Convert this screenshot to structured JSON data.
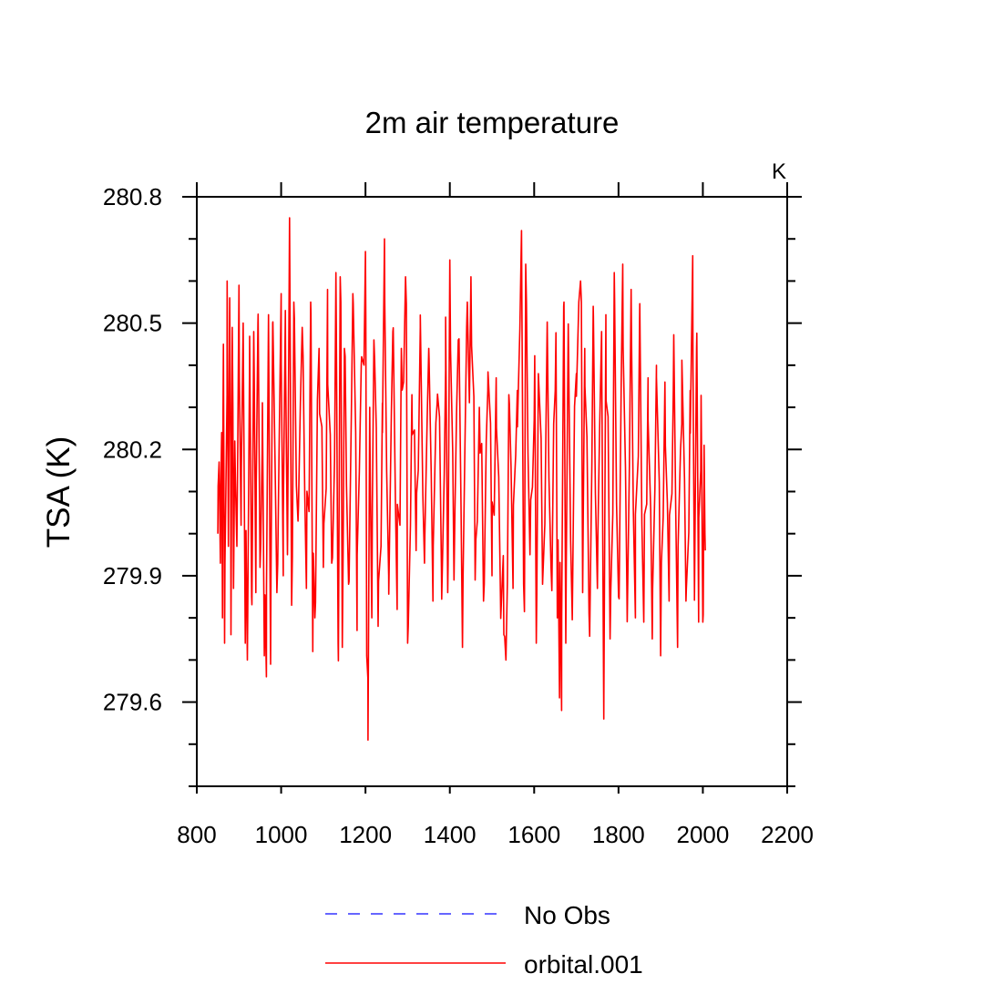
{
  "chart_data": {
    "type": "line",
    "title": "2m air temperature",
    "units_label": "K",
    "xlabel": "",
    "ylabel": "TSA  (K)",
    "xlim": [
      800,
      2200
    ],
    "ylim": [
      279.4,
      280.8
    ],
    "xticks": [
      800,
      1000,
      1200,
      1400,
      1600,
      1800,
      2000,
      2200
    ],
    "xtick_labels": [
      "800",
      "1000",
      "1200",
      "1400",
      "1600",
      "1800",
      "2000",
      "2200"
    ],
    "yticks": [
      279.6,
      279.9,
      280.2,
      280.5,
      280.8
    ],
    "ytick_labels": [
      "279.6",
      "279.9",
      "280.2",
      "280.5",
      "280.8"
    ],
    "grid": false,
    "legend_position": "bottom-center",
    "series": [
      {
        "name": "No Obs",
        "color": "#3333ff",
        "style": "dashed",
        "x": [],
        "values": []
      },
      {
        "name": "orbital.001",
        "color": "#ff0000",
        "style": "solid",
        "x_start": 850,
        "x_end": 2005,
        "x_step": 5,
        "anchors": [
          [
            850,
            280.0
          ],
          [
            853,
            280.17
          ],
          [
            856,
            279.93
          ],
          [
            859,
            280.24
          ],
          [
            861,
            279.8
          ],
          [
            863,
            280.45
          ],
          [
            866,
            279.74
          ],
          [
            869,
            280.1
          ],
          [
            872,
            280.6
          ],
          [
            875,
            279.97
          ],
          [
            878,
            280.56
          ],
          [
            881,
            279.76
          ],
          [
            884,
            280.49
          ],
          [
            887,
            279.87
          ],
          [
            890,
            280.22
          ],
          [
            895,
            279.97
          ],
          [
            900,
            280.59
          ],
          [
            905,
            280.02
          ],
          [
            910,
            280.5
          ],
          [
            915,
            279.74
          ],
          [
            920,
            279.7
          ],
          [
            925,
            280.4
          ],
          [
            930,
            279.85
          ],
          [
            935,
            280.48
          ],
          [
            940,
            279.86
          ],
          [
            945,
            280.5
          ],
          [
            950,
            279.92
          ],
          [
            955,
            280.19
          ],
          [
            960,
            279.71
          ],
          [
            965,
            279.66
          ],
          [
            970,
            280.52
          ],
          [
            975,
            279.69
          ],
          [
            980,
            280.5
          ],
          [
            990,
            279.86
          ],
          [
            1000,
            280.57
          ],
          [
            1005,
            279.9
          ],
          [
            1010,
            280.53
          ],
          [
            1015,
            279.95
          ],
          [
            1020,
            280.75
          ],
          [
            1025,
            279.83
          ],
          [
            1030,
            280.55
          ],
          [
            1040,
            280.03
          ],
          [
            1050,
            280.49
          ],
          [
            1060,
            279.87
          ],
          [
            1070,
            280.55
          ],
          [
            1075,
            279.72
          ],
          [
            1080,
            279.8
          ],
          [
            1090,
            280.44
          ],
          [
            1100,
            279.92
          ],
          [
            1110,
            280.58
          ],
          [
            1120,
            279.93
          ],
          [
            1130,
            280.62
          ],
          [
            1135,
            279.74
          ],
          [
            1140,
            280.61
          ],
          [
            1145,
            279.73
          ],
          [
            1150,
            280.44
          ],
          [
            1160,
            279.88
          ],
          [
            1170,
            280.57
          ],
          [
            1180,
            279.77
          ],
          [
            1190,
            280.4
          ],
          [
            1200,
            280.67
          ],
          [
            1203,
            279.71
          ],
          [
            1206,
            279.51
          ],
          [
            1210,
            280.3
          ],
          [
            1215,
            279.8
          ],
          [
            1220,
            280.46
          ],
          [
            1230,
            279.78
          ],
          [
            1240,
            280.31
          ],
          [
            1245,
            280.7
          ],
          [
            1255,
            279.9
          ],
          [
            1265,
            280.48
          ],
          [
            1275,
            279.82
          ],
          [
            1285,
            280.44
          ],
          [
            1295,
            280.61
          ],
          [
            1300,
            279.74
          ],
          [
            1310,
            280.33
          ],
          [
            1320,
            279.96
          ],
          [
            1330,
            280.49
          ],
          [
            1340,
            279.93
          ],
          [
            1350,
            280.44
          ],
          [
            1360,
            279.84
          ],
          [
            1370,
            280.31
          ],
          [
            1380,
            279.92
          ],
          [
            1390,
            280.39
          ],
          [
            1395,
            279.86
          ],
          [
            1400,
            280.65
          ],
          [
            1410,
            279.89
          ],
          [
            1420,
            280.46
          ],
          [
            1430,
            279.73
          ],
          [
            1440,
            280.49
          ],
          [
            1450,
            280.61
          ],
          [
            1460,
            279.89
          ],
          [
            1470,
            280.3
          ],
          [
            1480,
            279.84
          ],
          [
            1490,
            280.34
          ],
          [
            1500,
            279.9
          ],
          [
            1510,
            280.37
          ],
          [
            1520,
            279.85
          ],
          [
            1528,
            279.76
          ],
          [
            1533,
            279.7
          ],
          [
            1540,
            280.33
          ],
          [
            1550,
            279.87
          ],
          [
            1560,
            280.34
          ],
          [
            1570,
            280.72
          ],
          [
            1575,
            279.88
          ],
          [
            1580,
            280.64
          ],
          [
            1590,
            279.95
          ],
          [
            1600,
            280.27
          ],
          [
            1605,
            279.74
          ],
          [
            1610,
            280.38
          ],
          [
            1620,
            279.88
          ],
          [
            1630,
            280.43
          ],
          [
            1640,
            279.92
          ],
          [
            1650,
            280.34
          ],
          [
            1655,
            279.8
          ],
          [
            1660,
            279.61
          ],
          [
            1665,
            279.58
          ],
          [
            1670,
            280.54
          ],
          [
            1675,
            279.74
          ],
          [
            1680,
            280.4
          ],
          [
            1690,
            279.82
          ],
          [
            1700,
            280.38
          ],
          [
            1710,
            280.6
          ],
          [
            1715,
            279.86
          ],
          [
            1720,
            280.44
          ],
          [
            1730,
            279.81
          ],
          [
            1740,
            280.54
          ],
          [
            1750,
            279.87
          ],
          [
            1760,
            280.48
          ],
          [
            1765,
            279.56
          ],
          [
            1770,
            280.52
          ],
          [
            1780,
            279.75
          ],
          [
            1790,
            280.62
          ],
          [
            1800,
            279.85
          ],
          [
            1810,
            280.64
          ],
          [
            1820,
            279.86
          ],
          [
            1830,
            280.58
          ],
          [
            1840,
            279.8
          ],
          [
            1850,
            280.51
          ],
          [
            1860,
            279.79
          ],
          [
            1870,
            280.37
          ],
          [
            1880,
            279.75
          ],
          [
            1890,
            280.4
          ],
          [
            1900,
            279.71
          ],
          [
            1910,
            280.36
          ],
          [
            1920,
            279.84
          ],
          [
            1930,
            280.34
          ],
          [
            1940,
            279.73
          ],
          [
            1950,
            280.26
          ],
          [
            1960,
            279.84
          ],
          [
            1970,
            280.34
          ],
          [
            1976,
            280.66
          ],
          [
            1980,
            279.86
          ],
          [
            1985,
            280.44
          ],
          [
            1990,
            279.79
          ],
          [
            1995,
            280.15
          ],
          [
            2000,
            279.79
          ],
          [
            2003,
            280.21
          ],
          [
            2005,
            280.0
          ]
        ]
      }
    ]
  }
}
